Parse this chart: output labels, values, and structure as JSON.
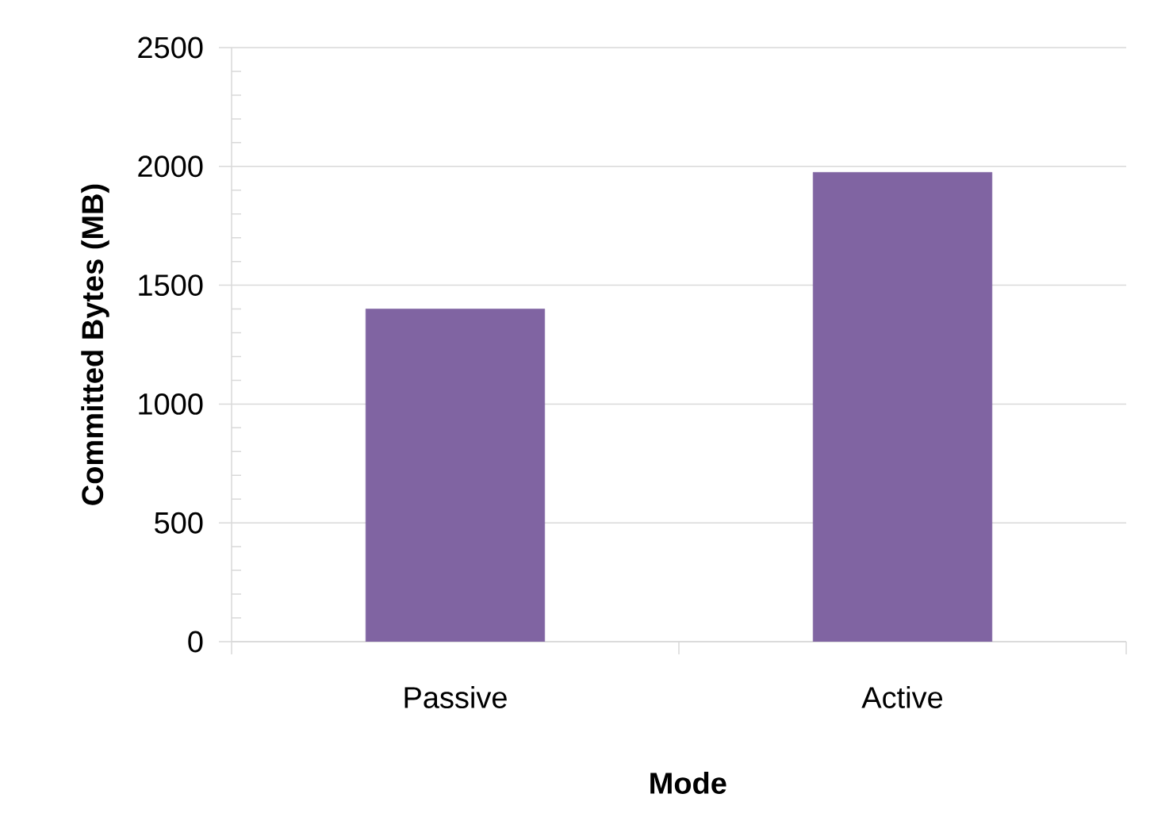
{
  "chart_data": {
    "type": "bar",
    "xlabel": "Mode",
    "ylabel": "Committed Bytes (MB)",
    "categories": [
      "Passive",
      "Active"
    ],
    "values": [
      1400,
      1975
    ],
    "color": "#8064a2",
    "ylim": [
      0,
      2500
    ],
    "yticks": [
      0,
      500,
      1000,
      1500,
      2000,
      2500
    ],
    "grid": "y"
  }
}
